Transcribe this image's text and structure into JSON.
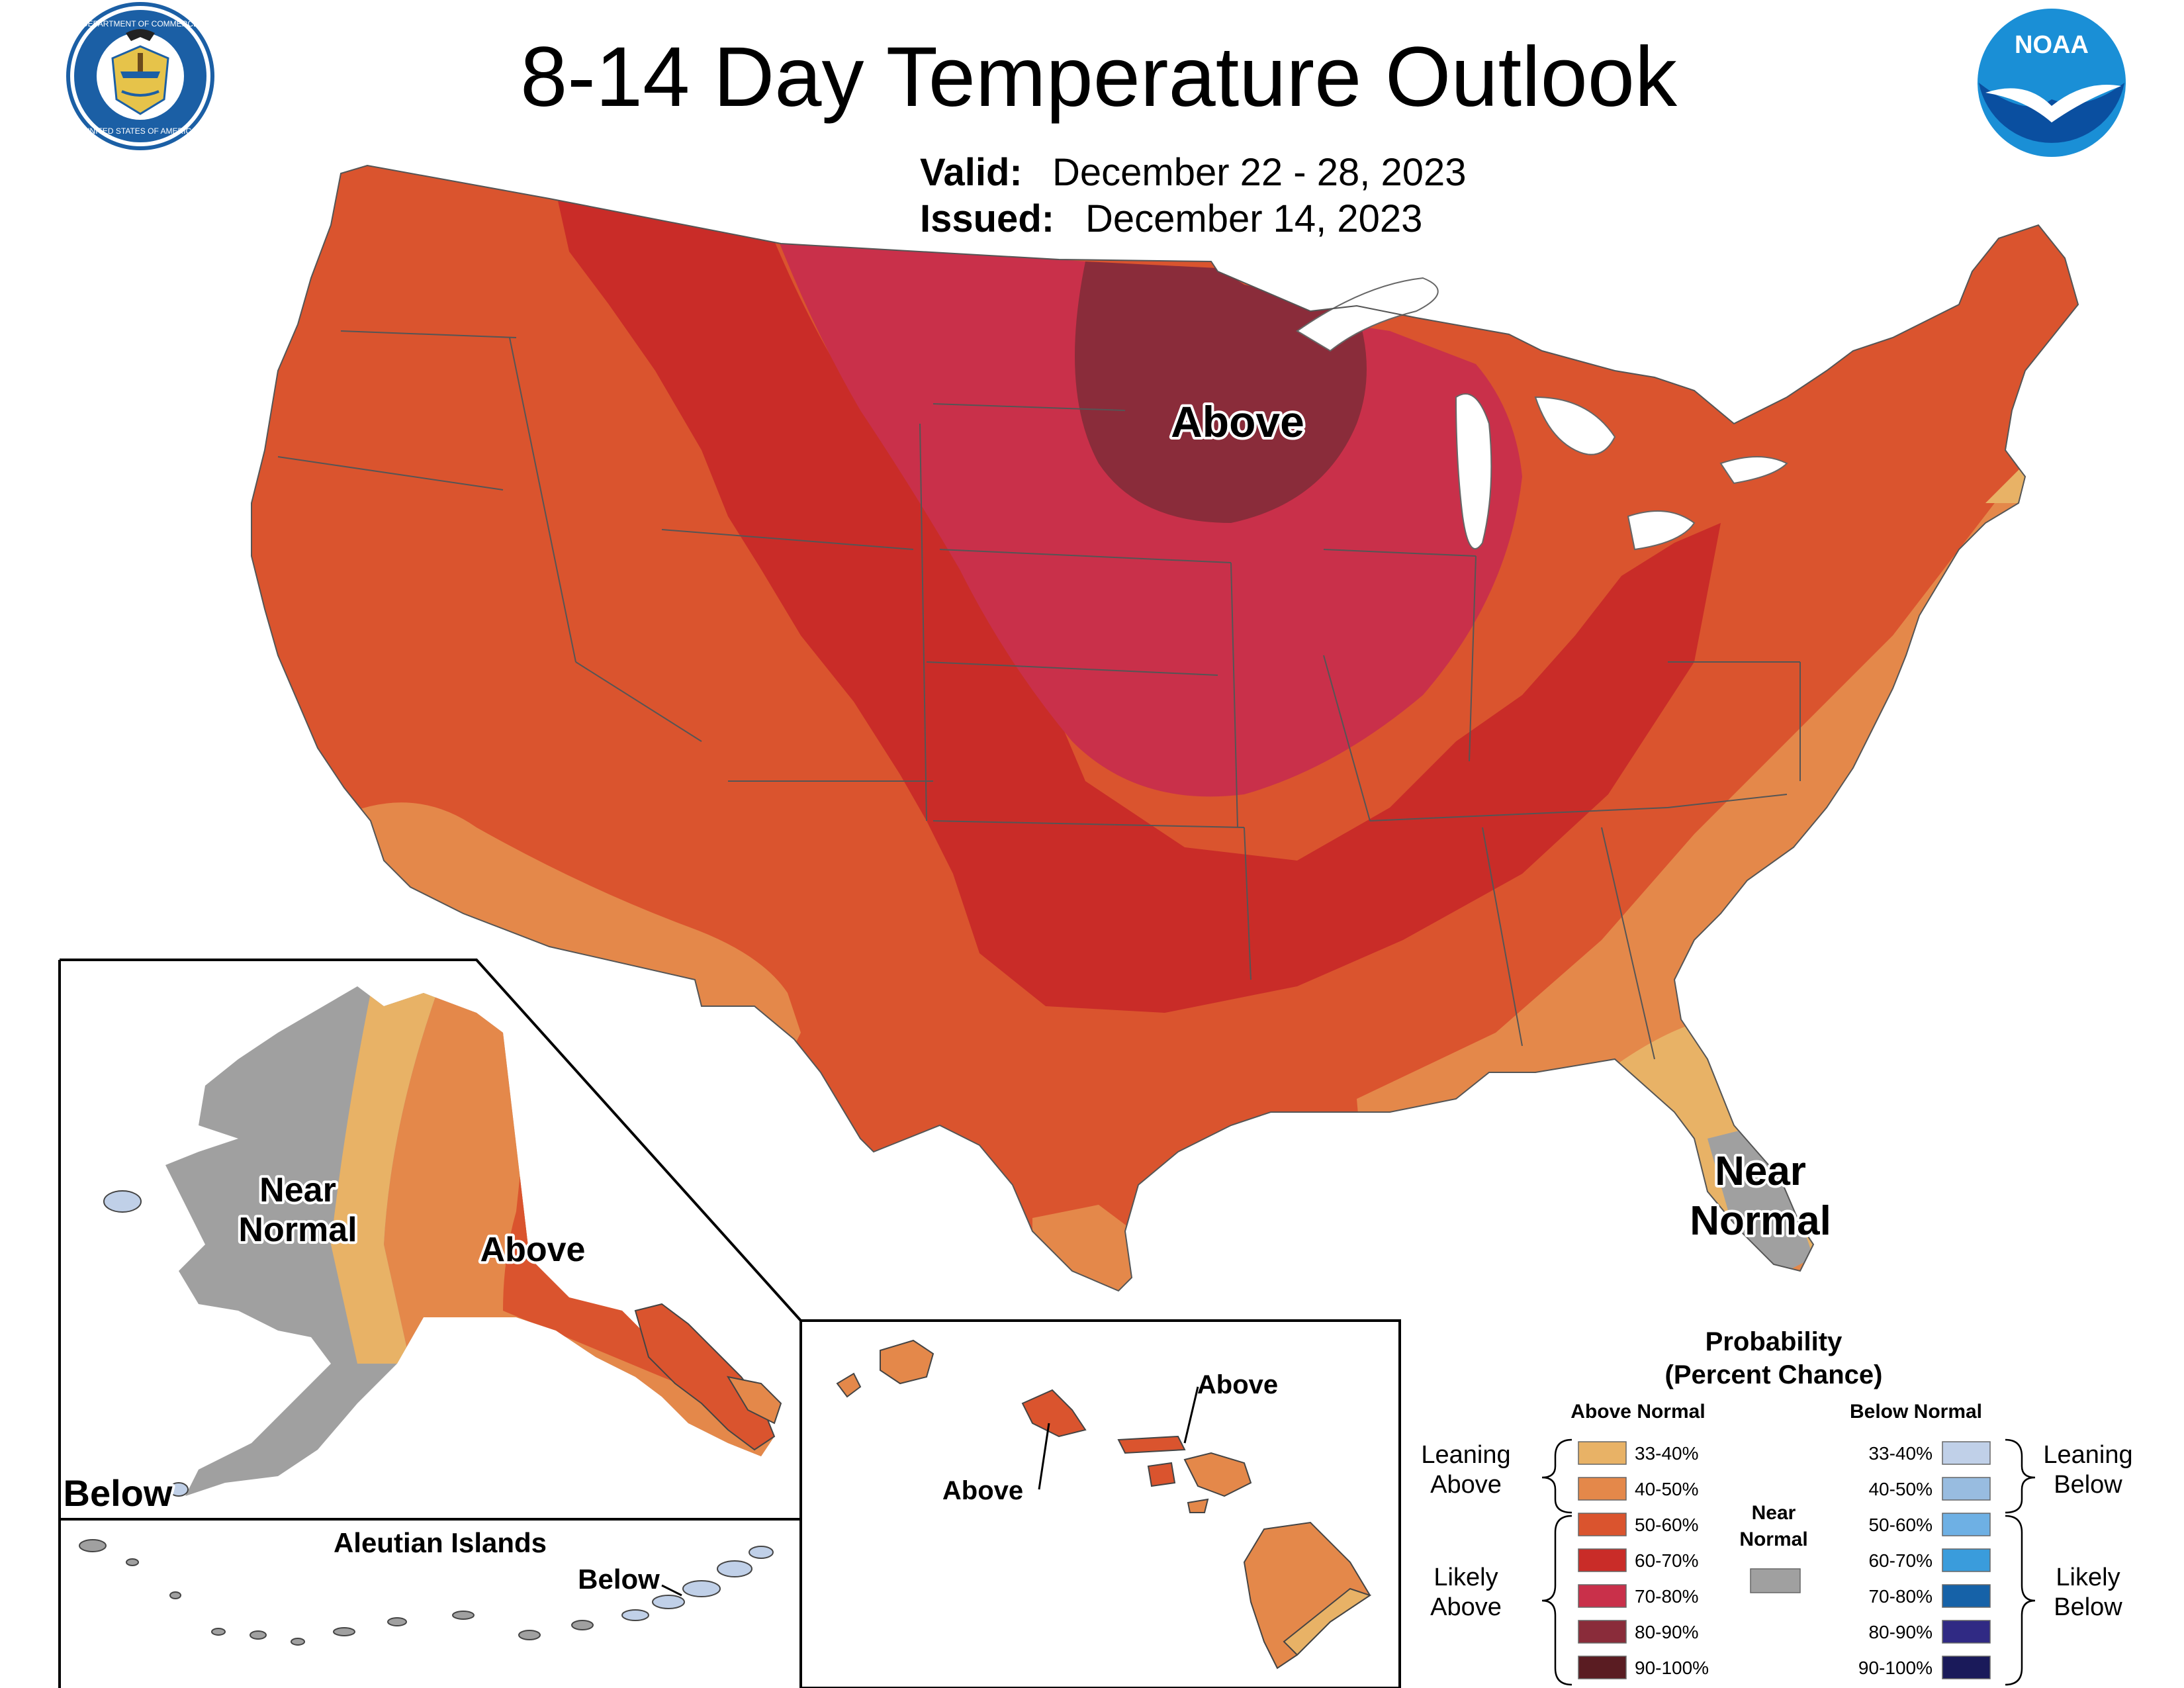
{
  "title": "8-14 Day Temperature Outlook",
  "valid": {
    "label": "Valid:",
    "value": "December 22 - 28, 2023"
  },
  "issued": {
    "label": "Issued:",
    "value": "December 14, 2023"
  },
  "logos": {
    "commerce": {
      "icon": "department-of-commerce-seal-icon",
      "top_text": "DEPARTMENT OF COMMERCE",
      "bottom_text": "UNITED STATES OF AMERICA"
    },
    "noaa": {
      "icon": "noaa-logo-icon",
      "text": "NOAA"
    }
  },
  "map_labels": {
    "conus_above": "Above",
    "conus_near_1": "Near",
    "conus_near_2": "Normal",
    "alaska_near_1": "Near",
    "alaska_near_2": "Normal",
    "alaska_above": "Above",
    "alaska_below": "Below",
    "aleutian_title": "Aleutian Islands",
    "aleutian_below": "Below",
    "hawaii_above_1": "Above",
    "hawaii_above_2": "Above"
  },
  "legend": {
    "title_1": "Probability",
    "title_2": "(Percent Chance)",
    "above_header": "Above Normal",
    "below_header": "Below Normal",
    "near_header_1": "Near",
    "near_header_2": "Normal",
    "leaning_above_1": "Leaning",
    "leaning_above_2": "Above",
    "likely_above_1": "Likely",
    "likely_above_2": "Above",
    "leaning_below_1": "Leaning",
    "leaning_below_2": "Below",
    "likely_below_1": "Likely",
    "likely_below_2": "Below",
    "above_categories": [
      {
        "label": "33-40%",
        "color": "#e8b266"
      },
      {
        "label": "40-50%",
        "color": "#e4884a"
      },
      {
        "label": "50-60%",
        "color": "#da542e"
      },
      {
        "label": "60-70%",
        "color": "#c92c28"
      },
      {
        "label": "70-80%",
        "color": "#c9304a"
      },
      {
        "label": "80-90%",
        "color": "#8a2c3a"
      },
      {
        "label": "90-100%",
        "color": "#5a1c22"
      }
    ],
    "below_categories": [
      {
        "label": "33-40%",
        "color": "#c0d0e8"
      },
      {
        "label": "40-50%",
        "color": "#98bce0"
      },
      {
        "label": "50-60%",
        "color": "#6eb0e4"
      },
      {
        "label": "60-70%",
        "color": "#3a9cdc"
      },
      {
        "label": "70-80%",
        "color": "#1662a8"
      },
      {
        "label": "80-90%",
        "color": "#302a84"
      },
      {
        "label": "90-100%",
        "color": "#1a1a5a"
      }
    ],
    "near_color": "#a0a0a0"
  }
}
